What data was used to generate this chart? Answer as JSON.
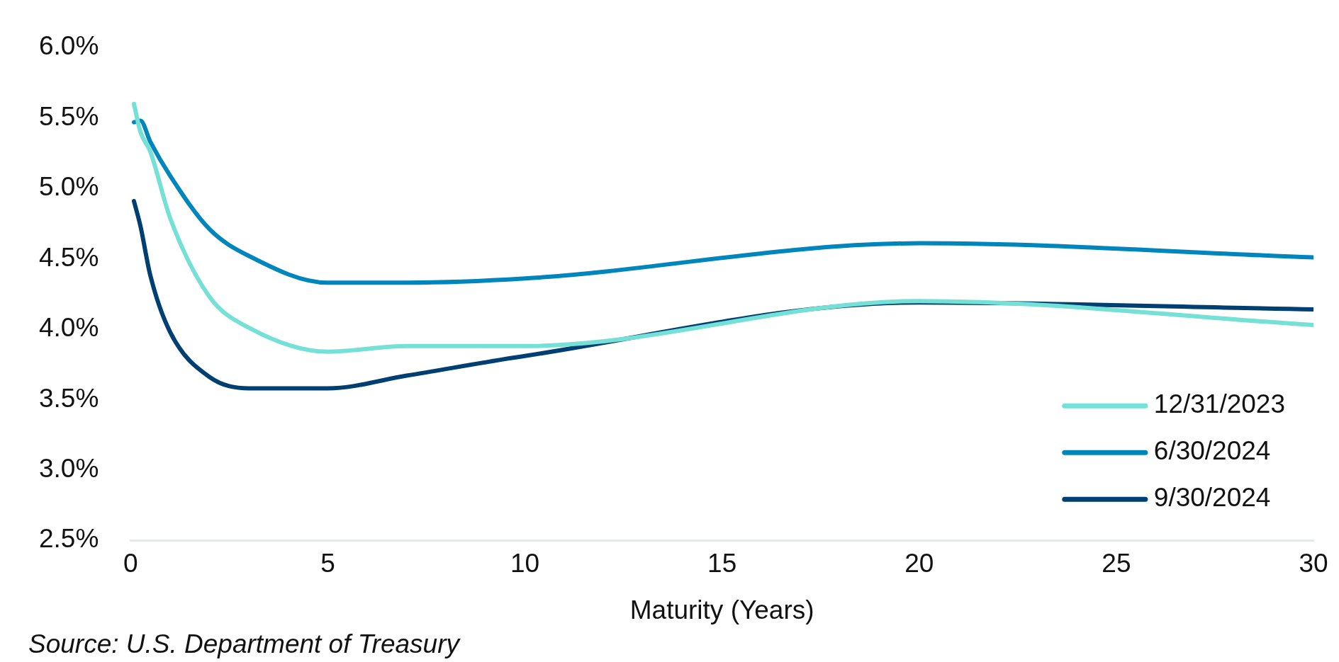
{
  "chart_data": {
    "type": "line",
    "xlabel": "Maturity (Years)",
    "x": [
      0.083,
      0.25,
      0.5,
      1,
      2,
      3,
      5,
      7,
      10,
      20,
      30
    ],
    "series": [
      {
        "name": "12/31/2023",
        "color": "#74e0d6",
        "values": [
          5.6,
          5.4,
          5.26,
          4.79,
          4.23,
          4.01,
          3.84,
          3.88,
          3.88,
          4.2,
          4.03
        ]
      },
      {
        "name": "6/30/2024",
        "color": "#0085bd",
        "values": [
          5.47,
          5.48,
          5.33,
          5.09,
          4.71,
          4.52,
          4.33,
          4.33,
          4.36,
          4.61,
          4.51
        ]
      },
      {
        "name": "9/30/2024",
        "color": "#003f72",
        "values": [
          4.91,
          4.73,
          4.38,
          3.98,
          3.66,
          3.58,
          3.58,
          3.67,
          3.81,
          4.19,
          4.14
        ]
      }
    ],
    "xlim": [
      0,
      30
    ],
    "xticks": [
      0,
      5,
      10,
      15,
      20,
      25,
      30
    ],
    "ylim": [
      2.5,
      6.0
    ],
    "yticks": [
      {
        "value": 2.5,
        "label": "2.5%"
      },
      {
        "value": 3.0,
        "label": "3.0%"
      },
      {
        "value": 3.5,
        "label": "3.5%"
      },
      {
        "value": 4.0,
        "label": "4.0%"
      },
      {
        "value": 4.5,
        "label": "4.5%"
      },
      {
        "value": 5.0,
        "label": "5.0%"
      },
      {
        "value": 5.5,
        "label": "5.5%"
      },
      {
        "value": 6.0,
        "label": "6.0%"
      }
    ],
    "grid": false,
    "legend": "bottom right",
    "marker": "none",
    "line_style": "solid",
    "annotations": [
      "Source: U.S. Department of Treasury"
    ]
  }
}
